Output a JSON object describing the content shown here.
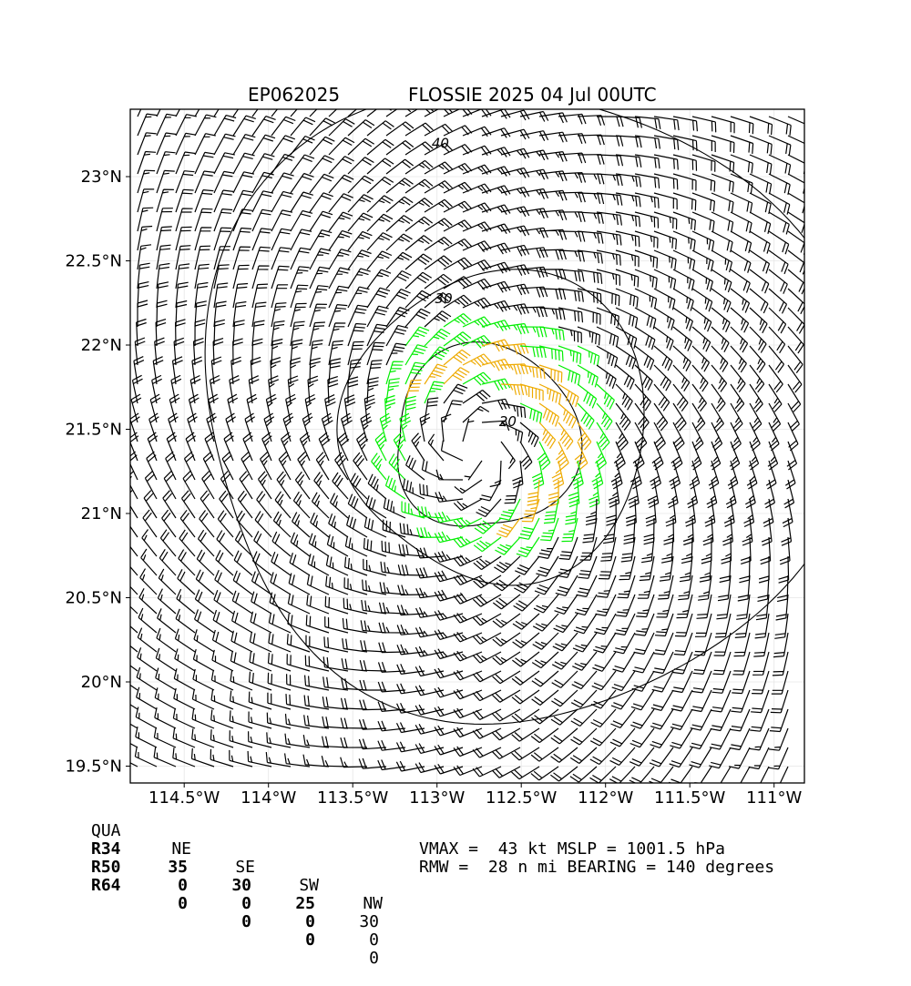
{
  "header": {
    "storm_id": "EP062025",
    "storm_title": "FLOSSIE 2025 04 Jul 00UTC"
  },
  "chart_data": {
    "type": "wind-barb-map",
    "title": "EP062025          FLOSSIE 2025 04 Jul 00UTC",
    "x_ticks": [
      {
        "value": -114.5,
        "label": "114.5°W"
      },
      {
        "value": -114.0,
        "label": "114°W"
      },
      {
        "value": -113.5,
        "label": "113.5°W"
      },
      {
        "value": -113.0,
        "label": "113°W"
      },
      {
        "value": -112.5,
        "label": "112.5°W"
      },
      {
        "value": -112.0,
        "label": "112°W"
      },
      {
        "value": -111.5,
        "label": "111.5°W"
      },
      {
        "value": -111.0,
        "label": "111°W"
      }
    ],
    "y_ticks": [
      {
        "value": 19.5,
        "label": "19.5°N"
      },
      {
        "value": 20.0,
        "label": "20°N"
      },
      {
        "value": 20.5,
        "label": "20.5°N"
      },
      {
        "value": 21.0,
        "label": "21°N"
      },
      {
        "value": 21.5,
        "label": "21.5°N"
      },
      {
        "value": 22.0,
        "label": "22°N"
      },
      {
        "value": 22.5,
        "label": "22.5°N"
      },
      {
        "value": 23.0,
        "label": "23°N"
      }
    ],
    "xlim": [
      -114.82,
      -110.82
    ],
    "ylim": [
      19.4,
      23.4
    ],
    "grid": true,
    "center": {
      "lon": -112.78,
      "lat": 21.38
    },
    "rmw_nmi": 28,
    "r34_nmi": {
      "NE": 35,
      "SE": 30,
      "SW": 25,
      "NW": 30
    },
    "r50_nmi": {
      "NE": 0,
      "SE": 0,
      "SW": 0,
      "NW": 0
    },
    "r64_nmi": {
      "NE": 0,
      "SE": 0,
      "SW": 0,
      "NW": 0
    },
    "vmax_kt": 43,
    "barb_colors": {
      "below_34kt": "#000000",
      "34_to_40kt": "#00ee00",
      "above_40kt": "#eeaa00"
    },
    "contours": [
      {
        "level": 20,
        "label": "20",
        "label_lon": -112.58,
        "label_lat": 21.52
      },
      {
        "level": 30,
        "label": "30",
        "label_lon": -112.96,
        "label_lat": 22.25
      },
      {
        "level": 40,
        "label": "40",
        "label_lon": -112.98,
        "label_lat": 23.17
      }
    ]
  },
  "quadrant_table": {
    "header": [
      "QUA",
      "NE",
      "SE",
      "SW",
      "NW"
    ],
    "rows": [
      {
        "label": "R34",
        "values": [
          "35",
          "30",
          "25",
          "30"
        ]
      },
      {
        "label": "R50",
        "values": [
          "0",
          "0",
          "0",
          "0"
        ]
      },
      {
        "label": "R64",
        "values": [
          "0",
          "0",
          "0",
          "0"
        ]
      }
    ]
  },
  "info": {
    "line1": "VMAX =  43 kt MSLP = 1001.5 hPa",
    "line2": "RMW =  28 n mi BEARING = 140 degrees"
  }
}
